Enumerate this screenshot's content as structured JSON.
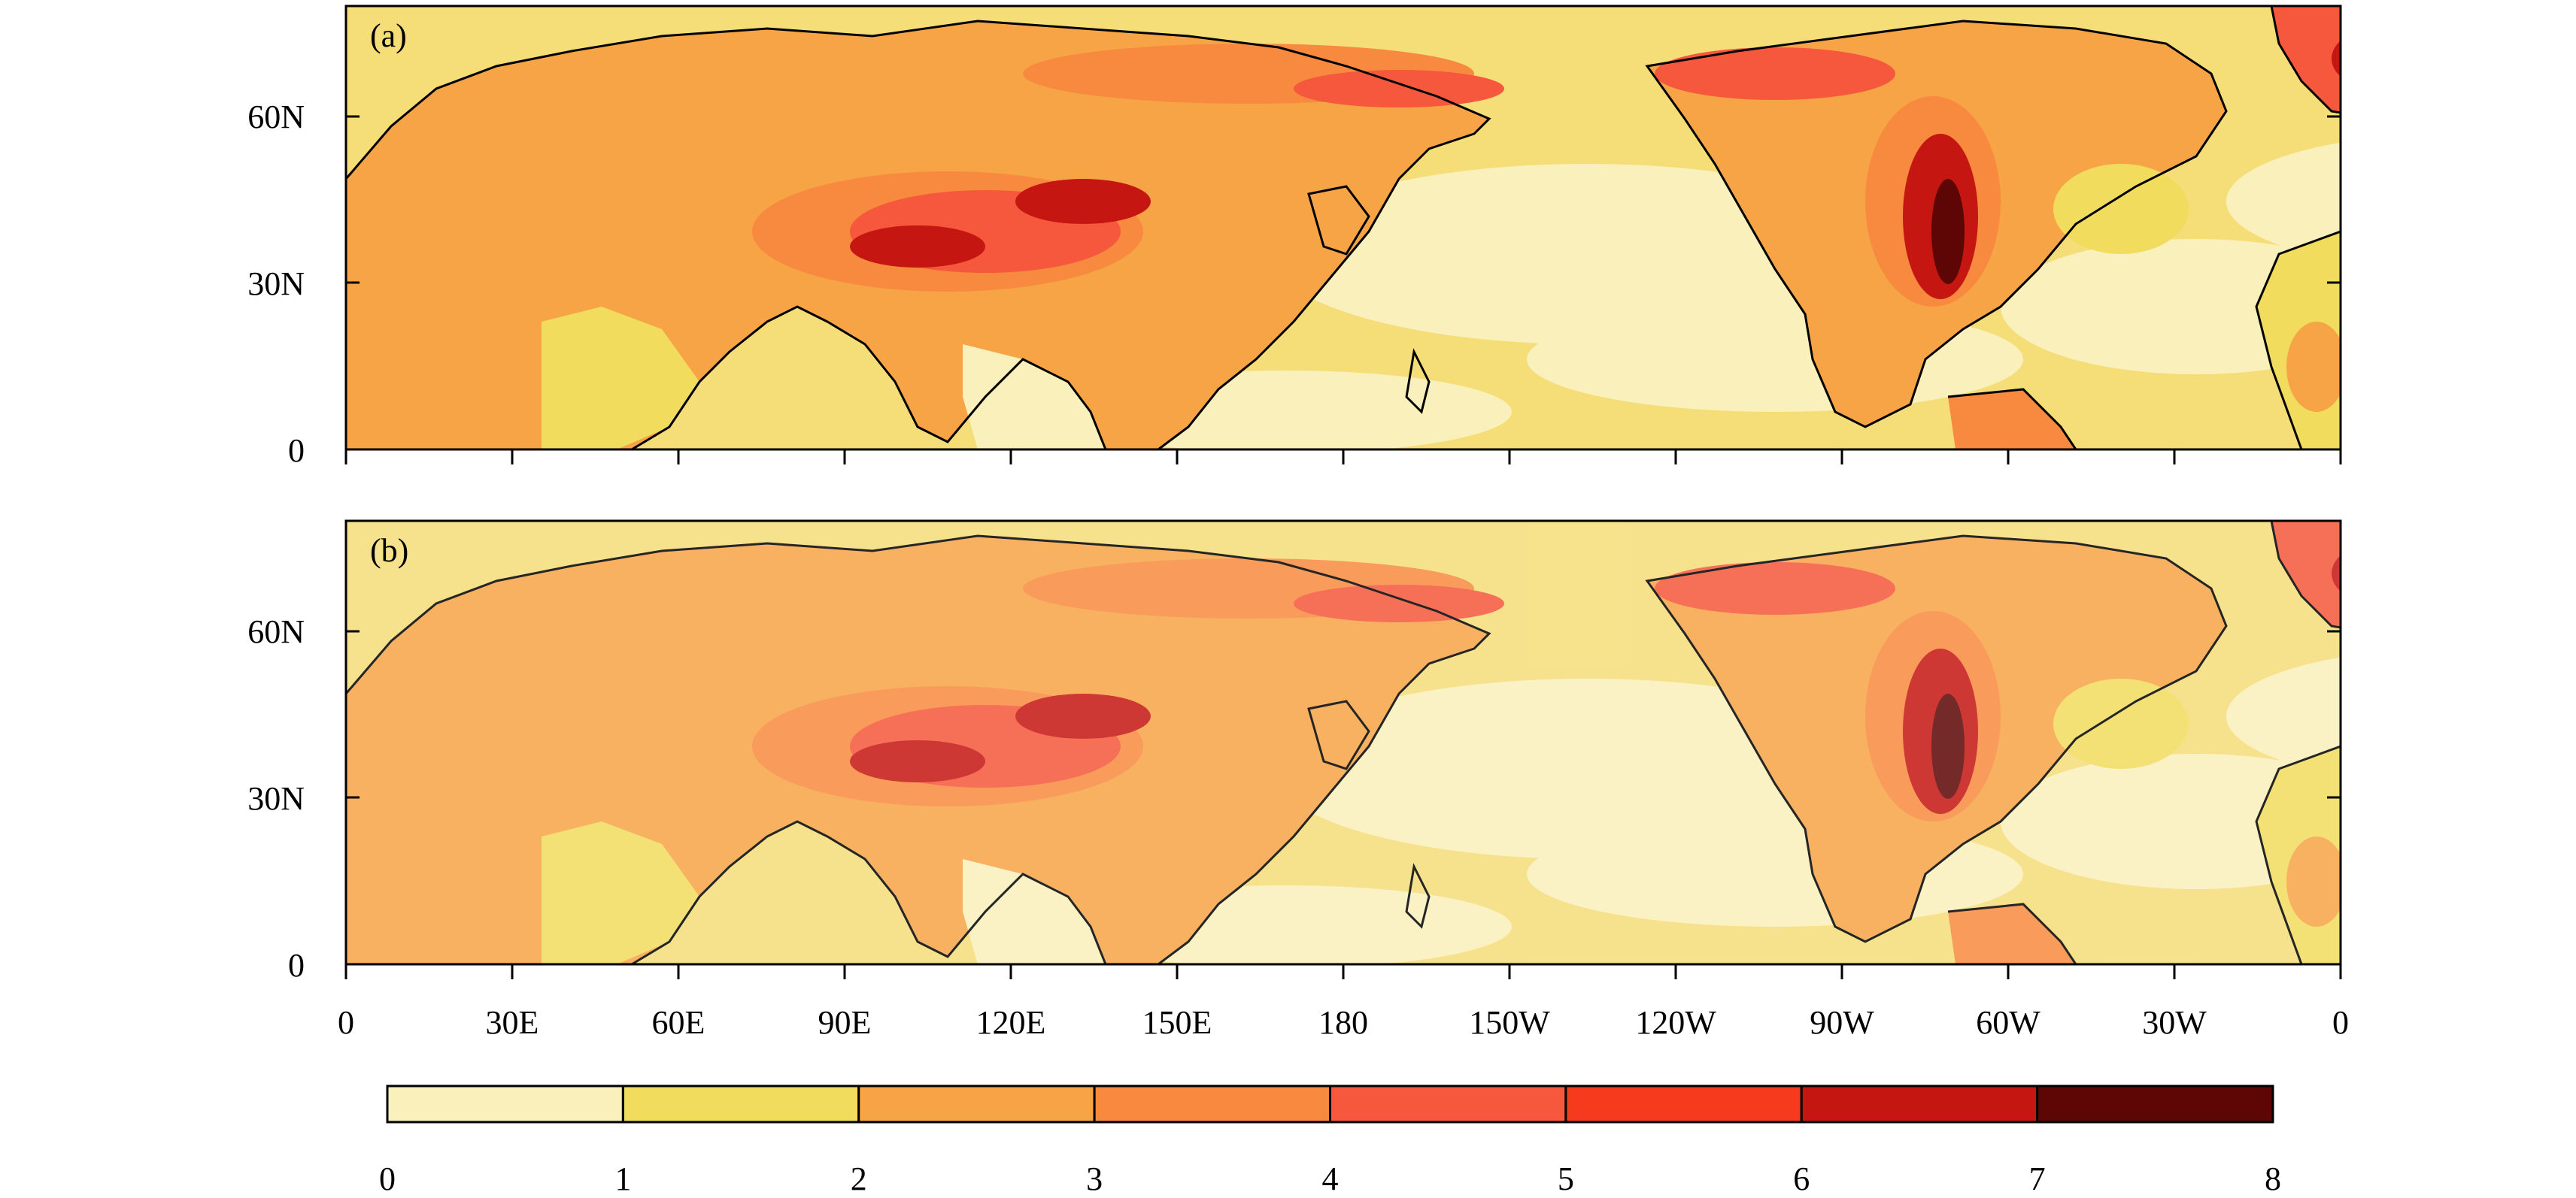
{
  "panels": [
    {
      "label": "(a)"
    },
    {
      "label": "(b)"
    }
  ],
  "lat_ticks": [
    "60N",
    "30N",
    "0"
  ],
  "lon_ticks": [
    "0",
    "30E",
    "60E",
    "90E",
    "120E",
    "150E",
    "180",
    "150W",
    "120W",
    "90W",
    "60W",
    "30W",
    "0"
  ],
  "colorbar": {
    "ticks": [
      "0",
      "1",
      "2",
      "3",
      "4",
      "5",
      "6",
      "7",
      "8"
    ],
    "colors": [
      "#faf0bb",
      "#f2dc5e",
      "#f7a446",
      "#f78a3f",
      "#f5583c",
      "#f53a1d",
      "#c51611",
      "#5d0605"
    ]
  },
  "land_color": "#f7b04a",
  "ocean_color": "#f5de78"
}
